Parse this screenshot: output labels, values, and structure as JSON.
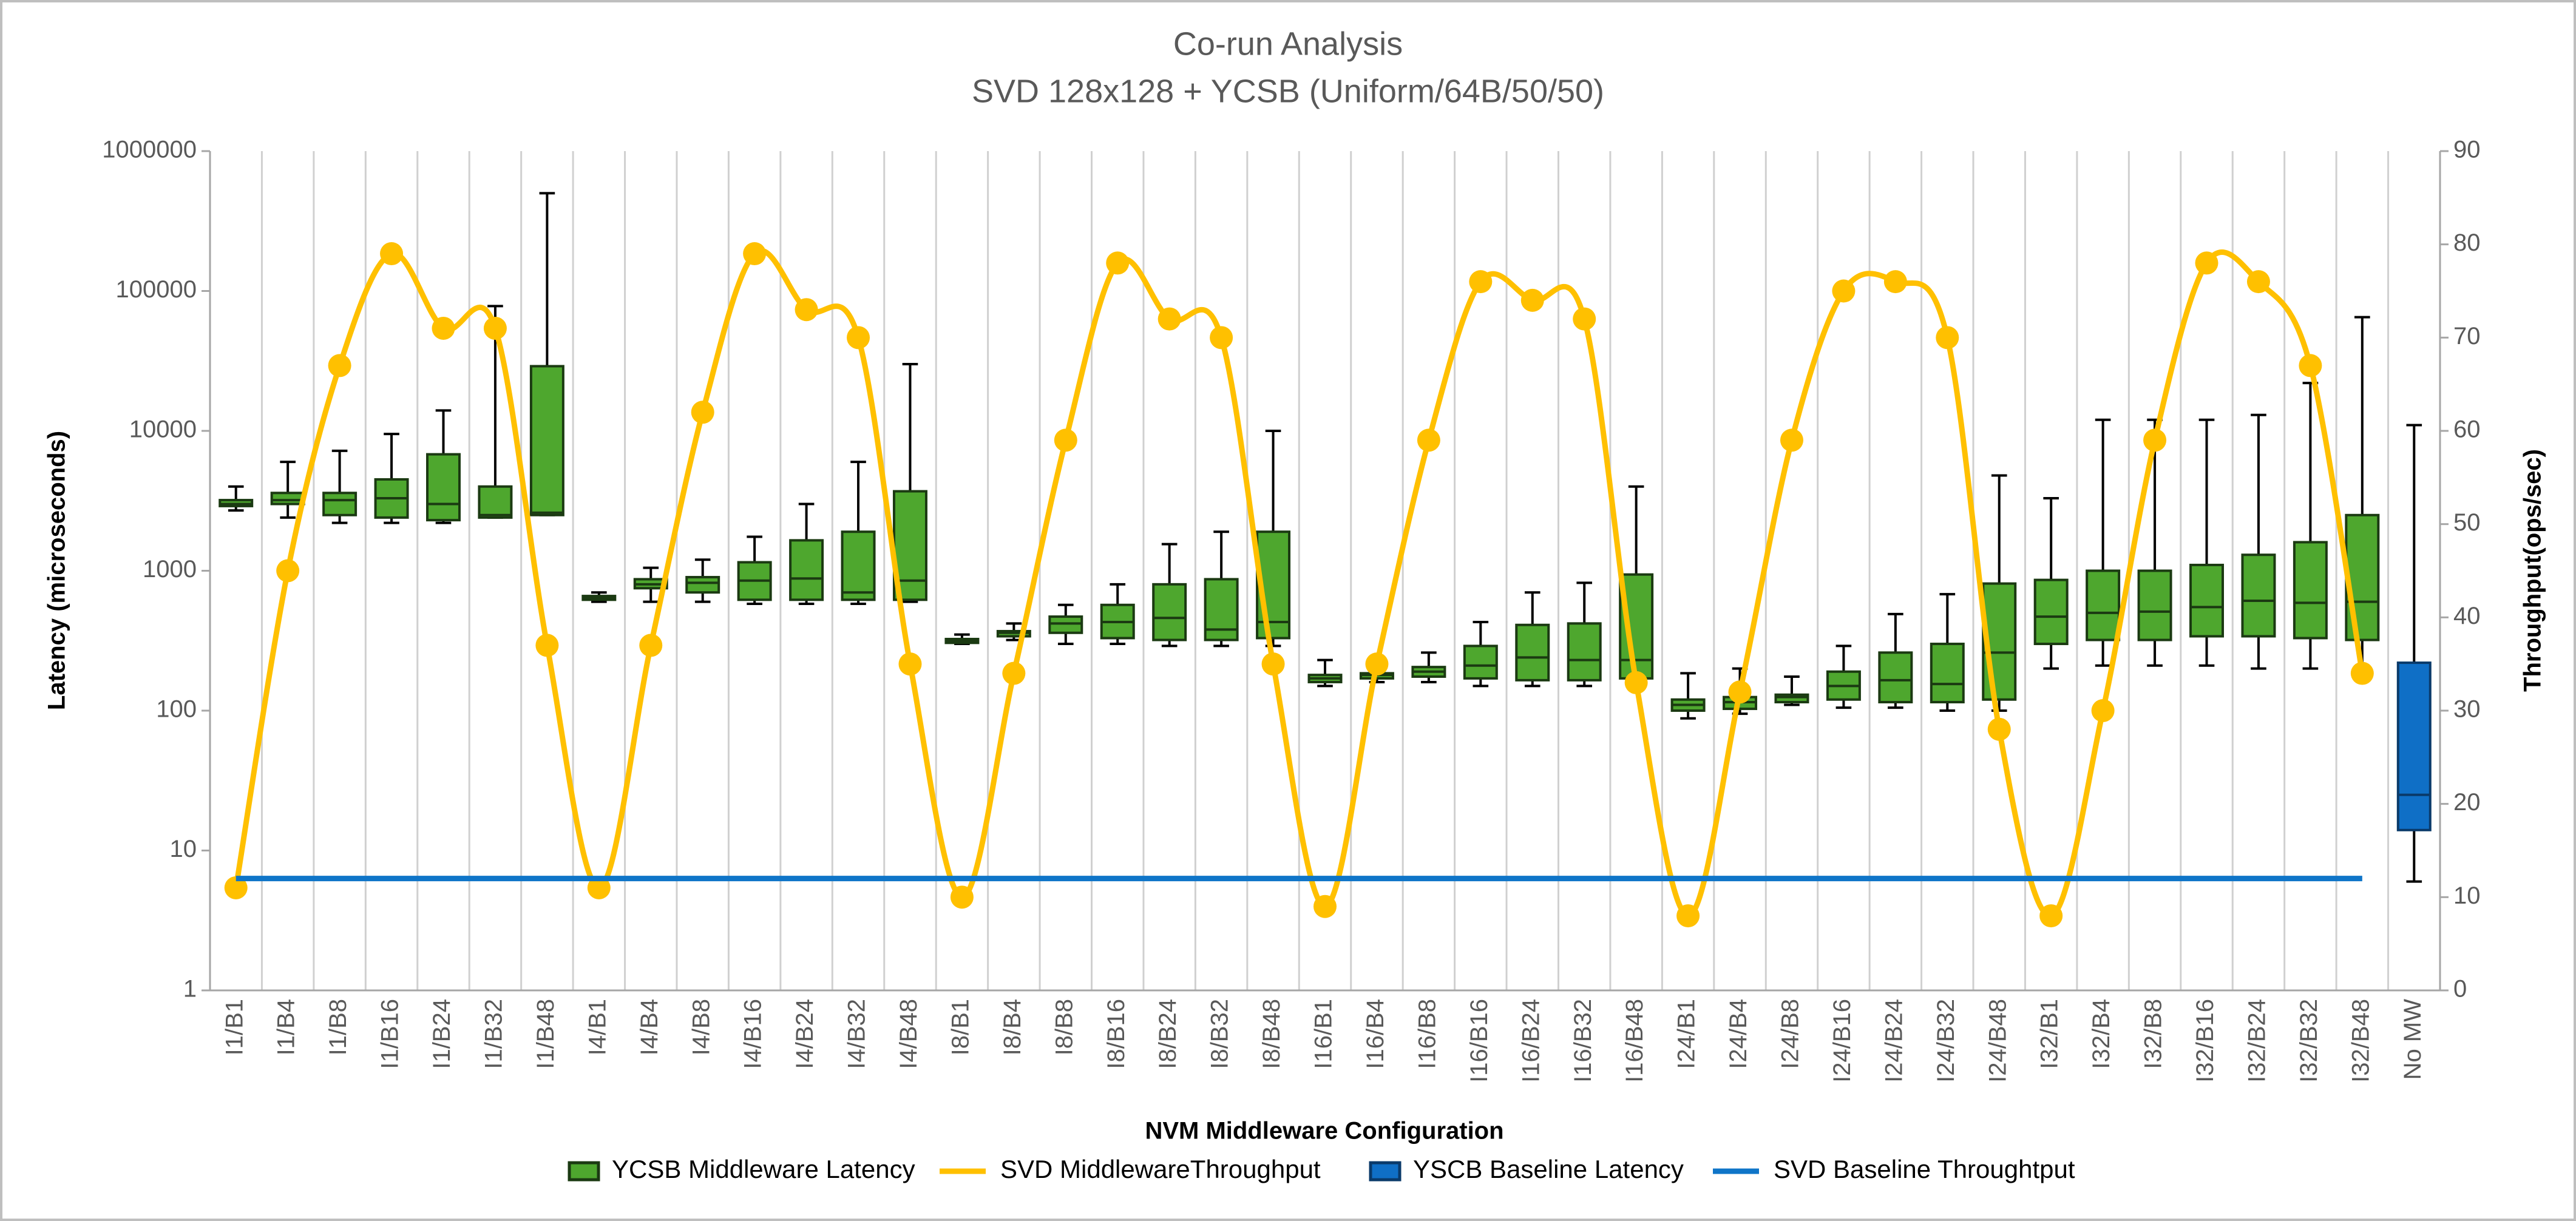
{
  "chart_data": {
    "type": "box",
    "title": "Co-run Analysis",
    "subtitle": "SVD 128x128 + YCSB (Uniform/64B/50/50)",
    "x_label": "NVM Middleware Configuration",
    "y_label": "Latency (microseconds)",
    "y2_label": "Throughput(ops/sec)",
    "categories": [
      "I1/B1",
      "I1/B4",
      "I1/B8",
      "I1/B16",
      "I1/B24",
      "I1/B32",
      "I1/B48",
      "I4/B1",
      "I4/B4",
      "I4/B8",
      "I4/B16",
      "I4/B24",
      "I4/B32",
      "I4/B48",
      "I8/B1",
      "I8/B4",
      "I8/B8",
      "I8/B16",
      "I8/B24",
      "I8/B32",
      "I8/B48",
      "I16/B1",
      "I16/B4",
      "I16/B8",
      "I16/B16",
      "I16/B24",
      "I16/B32",
      "I16/B48",
      "I24/B1",
      "I24/B4",
      "I24/B8",
      "I24/B16",
      "I24/B24",
      "I24/B32",
      "I24/B48",
      "I32/B1",
      "I32/B4",
      "I32/B8",
      "I32/B16",
      "I32/B24",
      "I32/B32",
      "I32/B48",
      "No MW"
    ],
    "ylog": true,
    "ylim": [
      1,
      1000000
    ],
    "yticks": [
      1,
      10,
      100,
      1000,
      10000,
      100000,
      1000000
    ],
    "y2lim": [
      0,
      90
    ],
    "y2ticks": [
      0,
      10,
      20,
      30,
      40,
      50,
      60,
      70,
      80,
      90
    ],
    "grid": true,
    "legend": "bottom",
    "series": [
      {
        "name": "YCSB Middleware Latency",
        "type": "box",
        "color": "#4ea72e",
        "edge": "#1b3a12",
        "min": [
          2700,
          2400,
          2200,
          2200,
          2200,
          2400,
          2500,
          600,
          600,
          600,
          580,
          580,
          580,
          600,
          300,
          320,
          300,
          300,
          290,
          290,
          290,
          150,
          160,
          160,
          150,
          150,
          150,
          150,
          88,
          95,
          110,
          105,
          105,
          100,
          100,
          200,
          210,
          210,
          210,
          200,
          200,
          200,
          null
        ],
        "q1": [
          2900,
          3000,
          2500,
          2400,
          2300,
          2400,
          2500,
          620,
          750,
          700,
          620,
          620,
          620,
          620,
          305,
          340,
          360,
          330,
          320,
          320,
          330,
          160,
          170,
          175,
          170,
          165,
          165,
          170,
          100,
          103,
          115,
          120,
          115,
          115,
          120,
          300,
          320,
          320,
          340,
          340,
          330,
          320,
          null
        ],
        "median": [
          3000,
          3200,
          3200,
          3300,
          3000,
          2500,
          2600,
          640,
          800,
          820,
          850,
          880,
          700,
          850,
          315,
          360,
          420,
          430,
          460,
          380,
          430,
          170,
          180,
          190,
          210,
          240,
          230,
          230,
          110,
          115,
          125,
          150,
          165,
          155,
          260,
          470,
          500,
          510,
          550,
          610,
          590,
          600,
          null
        ],
        "q3": [
          3200,
          3600,
          3600,
          4500,
          6800,
          4000,
          29000,
          660,
          870,
          900,
          1150,
          1650,
          1900,
          3700,
          325,
          370,
          470,
          570,
          800,
          870,
          1900,
          180,
          185,
          205,
          290,
          410,
          420,
          940,
          120,
          125,
          130,
          190,
          260,
          300,
          810,
          860,
          1000,
          1000,
          1100,
          1300,
          1600,
          2500,
          null
        ],
        "max": [
          4000,
          6000,
          7200,
          9500,
          14000,
          78000,
          500000,
          700,
          1050,
          1200,
          1750,
          3000,
          6000,
          30000,
          350,
          420,
          570,
          800,
          1550,
          1900,
          10000,
          230,
          230,
          260,
          430,
          700,
          820,
          4000,
          185,
          200,
          175,
          290,
          490,
          680,
          4800,
          3300,
          12000,
          12000,
          12000,
          13000,
          22000,
          65000,
          null
        ]
      },
      {
        "name": "SVD MiddlewareThroughput",
        "type": "line",
        "axis": "y2",
        "color": "#ffc000",
        "smooth": true,
        "markers": true,
        "values": [
          11,
          45,
          67,
          79,
          71,
          71,
          37,
          11,
          37,
          62,
          79,
          73,
          70,
          35,
          10,
          34,
          59,
          78,
          72,
          70,
          35,
          9,
          35,
          59,
          76,
          74,
          72,
          33,
          8,
          32,
          59,
          75,
          76,
          70,
          28,
          8,
          30,
          59,
          78,
          76,
          67,
          34,
          null
        ]
      },
      {
        "name": "YSCB Baseline Latency",
        "type": "box",
        "color": "#0f6fc6",
        "edge": "#0a3a6a",
        "min": [
          null,
          null,
          null,
          null,
          null,
          null,
          null,
          null,
          null,
          null,
          null,
          null,
          null,
          null,
          null,
          null,
          null,
          null,
          null,
          null,
          null,
          null,
          null,
          null,
          null,
          null,
          null,
          null,
          null,
          null,
          null,
          null,
          null,
          null,
          null,
          null,
          null,
          null,
          null,
          null,
          null,
          null,
          6
        ],
        "q1": [
          null,
          null,
          null,
          null,
          null,
          null,
          null,
          null,
          null,
          null,
          null,
          null,
          null,
          null,
          null,
          null,
          null,
          null,
          null,
          null,
          null,
          null,
          null,
          null,
          null,
          null,
          null,
          null,
          null,
          null,
          null,
          null,
          null,
          null,
          null,
          null,
          null,
          null,
          null,
          null,
          null,
          null,
          14
        ],
        "median": [
          null,
          null,
          null,
          null,
          null,
          null,
          null,
          null,
          null,
          null,
          null,
          null,
          null,
          null,
          null,
          null,
          null,
          null,
          null,
          null,
          null,
          null,
          null,
          null,
          null,
          null,
          null,
          null,
          null,
          null,
          null,
          null,
          null,
          null,
          null,
          null,
          null,
          null,
          null,
          null,
          null,
          null,
          25
        ],
        "q3": [
          null,
          null,
          null,
          null,
          null,
          null,
          null,
          null,
          null,
          null,
          null,
          null,
          null,
          null,
          null,
          null,
          null,
          null,
          null,
          null,
          null,
          null,
          null,
          null,
          null,
          null,
          null,
          null,
          null,
          null,
          null,
          null,
          null,
          null,
          null,
          null,
          null,
          null,
          null,
          null,
          null,
          null,
          220
        ],
        "max": [
          null,
          null,
          null,
          null,
          null,
          null,
          null,
          null,
          null,
          null,
          null,
          null,
          null,
          null,
          null,
          null,
          null,
          null,
          null,
          null,
          null,
          null,
          null,
          null,
          null,
          null,
          null,
          null,
          null,
          null,
          null,
          null,
          null,
          null,
          null,
          null,
          null,
          null,
          null,
          null,
          null,
          null,
          11000
        ]
      },
      {
        "name": "SVD Baseline Throughtput",
        "type": "line",
        "axis": "y2",
        "color": "#0f75c8",
        "values": [
          12,
          12,
          12,
          12,
          12,
          12,
          12,
          12,
          12,
          12,
          12,
          12,
          12,
          12,
          12,
          12,
          12,
          12,
          12,
          12,
          12,
          12,
          12,
          12,
          12,
          12,
          12,
          12,
          12,
          12,
          12,
          12,
          12,
          12,
          12,
          12,
          12,
          12,
          12,
          12,
          12,
          12,
          null
        ]
      }
    ]
  }
}
